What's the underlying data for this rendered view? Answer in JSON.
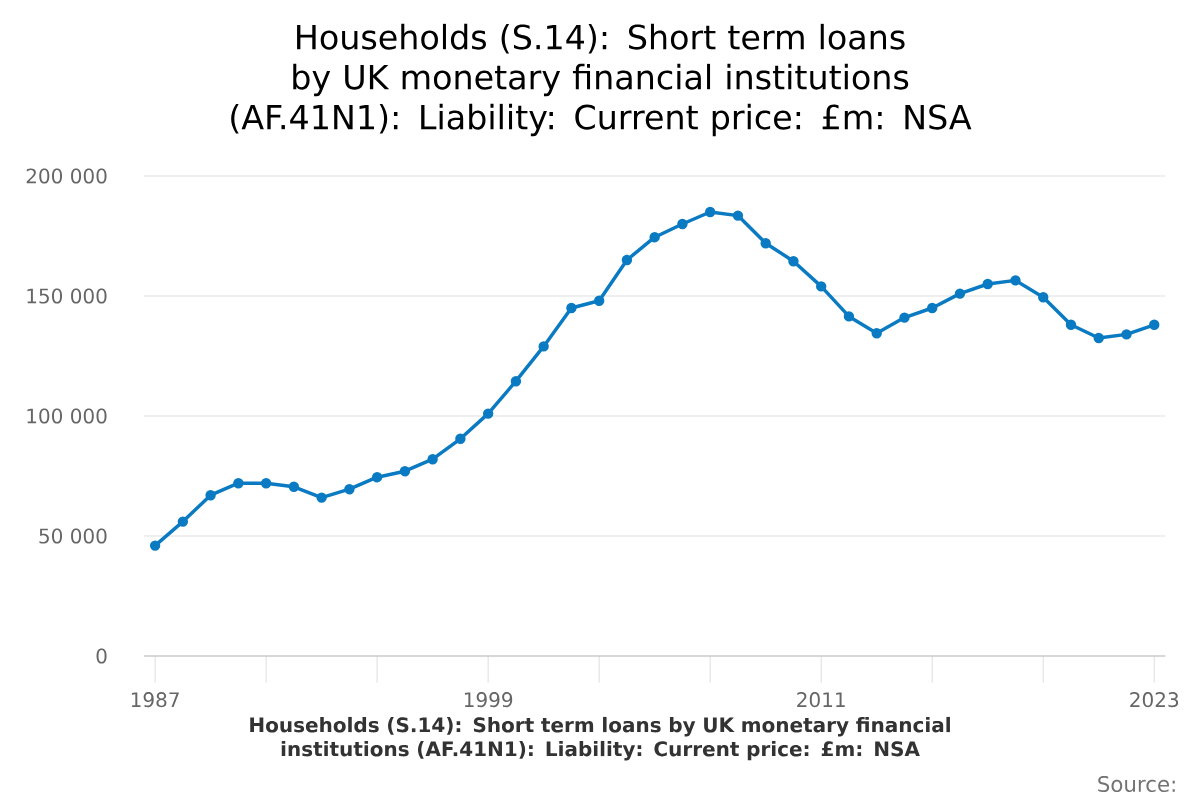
{
  "chart_data": {
    "type": "line",
    "title": "Households (S.14): Short term loans by UK monetary financial institutions (AF.41N1): Liability: Current price: £m: NSA",
    "xlabel": "Households (S.14): Short term loans by UK monetary financial institutions (AF.41N1): Liability: Current price: £m: NSA",
    "annotations": [
      "Source:"
    ],
    "x": [
      1987,
      1988,
      1989,
      1990,
      1991,
      1992,
      1993,
      1994,
      1995,
      1996,
      1997,
      1998,
      1999,
      2000,
      2001,
      2002,
      2003,
      2004,
      2005,
      2006,
      2007,
      2008,
      2009,
      2010,
      2011,
      2012,
      2013,
      2014,
      2015,
      2016,
      2017,
      2018,
      2019,
      2020,
      2021,
      2022,
      2023
    ],
    "series": [
      {
        "color": "#0a7bc2",
        "values": [
          46000,
          56000,
          67000,
          72000,
          72000,
          70500,
          66000,
          69500,
          74500,
          77000,
          82000,
          90500,
          101000,
          114500,
          129000,
          145000,
          148000,
          165000,
          174500,
          180000,
          185000,
          183500,
          172000,
          164500,
          154000,
          141500,
          134500,
          141000,
          145000,
          151000,
          155000,
          156500,
          149500,
          138000,
          132500,
          134000,
          138000
        ]
      }
    ],
    "xlim": [
      1986.6,
      2023.4
    ],
    "ylim": [
      0,
      200000
    ],
    "xticks": [
      1987,
      {
        "value": 1991,
        "label": null
      },
      {
        "value": 1995,
        "label": null
      },
      1999,
      {
        "value": 2003,
        "label": null
      },
      {
        "value": 2007,
        "label": null
      },
      2011,
      {
        "value": 2015,
        "label": null
      },
      {
        "value": 2019,
        "label": null
      },
      2023
    ],
    "yticks": [
      0,
      {
        "value": 50000,
        "label": "50 000"
      },
      {
        "value": 100000,
        "label": "100 000"
      },
      {
        "value": 150000,
        "label": "150 000"
      },
      {
        "value": 200000,
        "label": "200 000"
      }
    ],
    "grid": "y",
    "marker": "circle",
    "line_style": "solid"
  }
}
